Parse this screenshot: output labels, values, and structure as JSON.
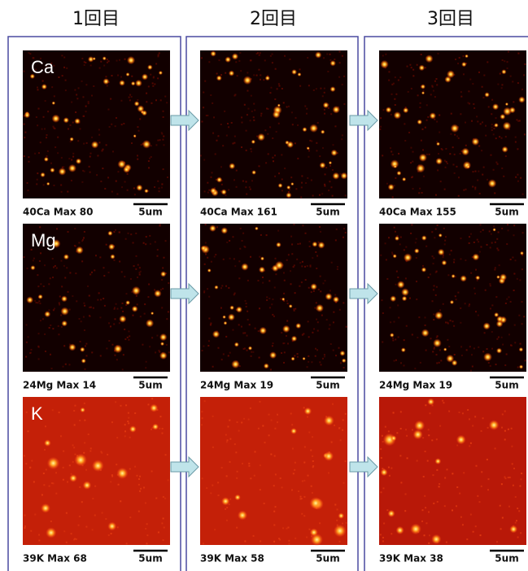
{
  "columns": [
    "1回目",
    "2回目",
    "3回目"
  ],
  "rows": [
    {
      "label": "Ca",
      "captions": [
        "40Ca  Max 80",
        "40Ca  Max 161",
        "40Ca  Max 155"
      ]
    },
    {
      "label": "Mg",
      "captions": [
        "24Mg  Max 14",
        "24Mg  Max 19",
        "24Mg  Max 19"
      ]
    },
    {
      "label": "K",
      "captions": [
        "39K  Max 68",
        "39K  Max 58",
        "39K  Max 38"
      ]
    }
  ],
  "scale_bar": "5um"
}
